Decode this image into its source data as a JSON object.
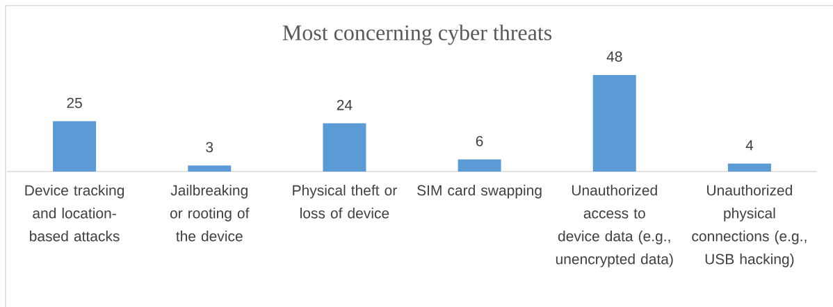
{
  "chart_data": {
    "type": "bar",
    "title": "Most concerning cyber threats",
    "categories": [
      "Device tracking and location-based attacks",
      "Jailbreaking or rooting of the device",
      "Physical theft or loss of device",
      "SIM card swapping",
      "Unauthorized access to device data (e.g., unencrypted data)",
      "Unauthorized physical connections (e.g., USB hacking)"
    ],
    "values": [
      25,
      3,
      24,
      6,
      48,
      4
    ],
    "color": "#5b9bd5",
    "data_labels": true
  }
}
